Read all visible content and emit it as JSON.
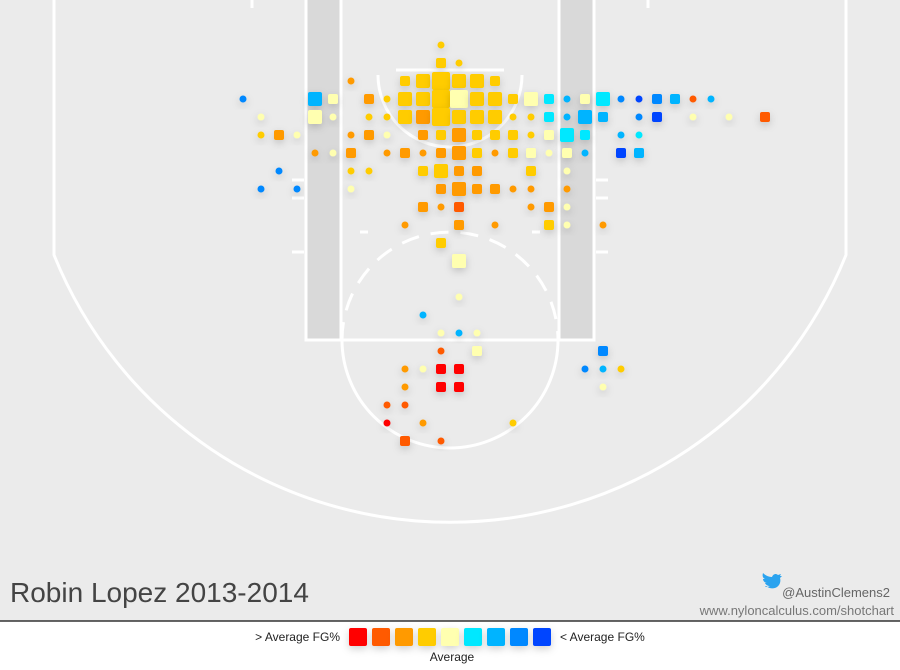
{
  "chart_data": {
    "type": "shotchart",
    "title": "Robin Lopez 2013-2014",
    "credit": "@AustinClemens2",
    "url": "www.nyloncalculus.com/shotchart",
    "legend": {
      "left": "> Average FG%",
      "right": "< Average FG%",
      "center": "Average",
      "colors": [
        "#ff0000",
        "#ff5a00",
        "#ff9a00",
        "#ffcc00",
        "#ffffb0",
        "#00e8ff",
        "#00b4ff",
        "#0088ff",
        "#0044ff"
      ]
    },
    "rows": [
      {
        "y": 0,
        "x": [
          -1
        ],
        "sizes": [
          1
        ],
        "colors": [
          3
        ]
      },
      {
        "y": 1,
        "x": [
          -1,
          0
        ],
        "sizes": [
          2,
          1
        ],
        "colors": [
          3,
          3
        ]
      },
      {
        "y": 2,
        "x": [
          -6,
          -3,
          -2,
          -1,
          0,
          1,
          2
        ],
        "sizes": [
          1,
          2,
          3,
          4,
          3,
          3,
          2
        ],
        "colors": [
          2,
          3,
          3,
          3,
          3,
          3,
          3
        ]
      },
      {
        "y": 3,
        "x": [
          -12,
          -8,
          -7,
          -5,
          -4,
          -3,
          -2,
          -1,
          0,
          1,
          2,
          3,
          4,
          5,
          6,
          7,
          8,
          9,
          10,
          11,
          12,
          13,
          14
        ],
        "sizes": [
          1,
          3,
          2,
          2,
          1,
          3,
          3,
          4,
          4,
          3,
          3,
          2,
          3,
          2,
          1,
          2,
          3,
          1,
          1,
          2,
          2,
          1,
          1
        ],
        "colors": [
          7,
          6,
          4,
          2,
          3,
          3,
          3,
          3,
          4,
          3,
          3,
          3,
          4,
          5,
          6,
          4,
          5,
          7,
          8,
          7,
          6,
          1,
          6
        ]
      },
      {
        "y": 4,
        "x": [
          -11,
          -8,
          -7,
          -5,
          -4,
          -3,
          -2,
          -1,
          0,
          1,
          2,
          3,
          4,
          5,
          6,
          7,
          8,
          10,
          11,
          13,
          15,
          17
        ],
        "sizes": [
          1,
          3,
          1,
          1,
          1,
          3,
          3,
          4,
          3,
          3,
          3,
          1,
          1,
          2,
          1,
          3,
          2,
          1,
          2,
          1,
          1,
          2
        ],
        "colors": [
          4,
          4,
          4,
          3,
          3,
          3,
          2,
          3,
          3,
          3,
          3,
          3,
          3,
          5,
          6,
          6,
          6,
          7,
          8,
          4,
          4,
          1
        ]
      },
      {
        "y": 5,
        "x": [
          -11,
          -10,
          -9,
          -6,
          -5,
          -4,
          -2,
          -1,
          0,
          1,
          2,
          3,
          4,
          5,
          6,
          7,
          9,
          10
        ],
        "sizes": [
          1,
          2,
          1,
          1,
          2,
          1,
          2,
          2,
          3,
          2,
          2,
          2,
          1,
          2,
          3,
          2,
          1,
          1
        ],
        "colors": [
          3,
          2,
          4,
          2,
          2,
          4,
          2,
          3,
          2,
          3,
          3,
          3,
          3,
          4,
          5,
          5,
          6,
          5
        ]
      },
      {
        "y": 6,
        "x": [
          -8,
          -7,
          -6,
          -4,
          -3,
          -2,
          -1,
          0,
          1,
          2,
          3,
          4,
          5,
          6,
          7,
          9,
          10
        ],
        "sizes": [
          1,
          1,
          2,
          1,
          2,
          1,
          2,
          3,
          2,
          1,
          2,
          2,
          1,
          2,
          1,
          2,
          2
        ],
        "colors": [
          2,
          4,
          2,
          2,
          2,
          2,
          2,
          2,
          3,
          2,
          3,
          4,
          4,
          4,
          6,
          8,
          6
        ]
      },
      {
        "y": 7,
        "x": [
          -10,
          -6,
          -5,
          -2,
          -1,
          0,
          1,
          4,
          6
        ],
        "sizes": [
          1,
          1,
          1,
          2,
          3,
          2,
          2,
          2,
          1
        ],
        "colors": [
          7,
          3,
          3,
          3,
          3,
          2,
          2,
          3,
          4
        ]
      },
      {
        "y": 8,
        "x": [
          -11,
          -9,
          -6,
          -1,
          0,
          1,
          2,
          3,
          4,
          6
        ],
        "sizes": [
          1,
          1,
          1,
          2,
          3,
          2,
          2,
          1,
          1,
          1
        ],
        "colors": [
          7,
          7,
          4,
          2,
          2,
          2,
          2,
          2,
          2,
          2
        ]
      },
      {
        "y": 9,
        "x": [
          -2,
          -1,
          0,
          4,
          5,
          6
        ],
        "sizes": [
          2,
          1,
          2,
          1,
          2,
          1
        ],
        "colors": [
          2,
          2,
          1,
          2,
          2,
          4
        ]
      },
      {
        "y": 10,
        "x": [
          -3,
          0,
          2,
          5,
          6,
          8
        ],
        "sizes": [
          1,
          2,
          1,
          2,
          1,
          1
        ],
        "colors": [
          2,
          2,
          2,
          3,
          4,
          2
        ]
      },
      {
        "y": 11,
        "x": [
          -1
        ],
        "sizes": [
          2
        ],
        "colors": [
          3
        ]
      },
      {
        "y": 12,
        "x": [
          0
        ],
        "sizes": [
          3
        ],
        "colors": [
          4
        ]
      },
      {
        "y": 14,
        "x": [
          0
        ],
        "sizes": [
          1
        ],
        "colors": [
          4
        ]
      },
      {
        "y": 15,
        "x": [
          -2
        ],
        "sizes": [
          1
        ],
        "colors": [
          6
        ]
      },
      {
        "y": 16,
        "x": [
          -1,
          0,
          1
        ],
        "sizes": [
          1,
          1,
          1
        ],
        "colors": [
          4,
          6,
          4
        ]
      },
      {
        "y": 17,
        "x": [
          -1,
          1,
          8
        ],
        "sizes": [
          1,
          2,
          2
        ],
        "colors": [
          1,
          4,
          7
        ]
      },
      {
        "y": 18,
        "x": [
          -3,
          -2,
          -1,
          0,
          7,
          8,
          9
        ],
        "sizes": [
          1,
          1,
          2,
          2,
          1,
          1,
          1
        ],
        "colors": [
          2,
          4,
          0,
          0,
          7,
          6,
          3
        ]
      },
      {
        "y": 19,
        "x": [
          -3,
          -1,
          0,
          8
        ],
        "sizes": [
          1,
          2,
          2,
          1
        ],
        "colors": [
          2,
          0,
          0,
          4
        ]
      },
      {
        "y": 20,
        "x": [
          -4,
          -3
        ],
        "sizes": [
          1,
          1
        ],
        "colors": [
          1,
          1
        ]
      },
      {
        "y": 21,
        "x": [
          -4,
          -2,
          3
        ],
        "sizes": [
          1,
          1,
          1
        ],
        "colors": [
          0,
          2,
          3
        ]
      },
      {
        "y": 22,
        "x": [
          -3,
          -1
        ],
        "sizes": [
          2,
          1
        ],
        "colors": [
          1,
          1
        ]
      }
    ]
  }
}
